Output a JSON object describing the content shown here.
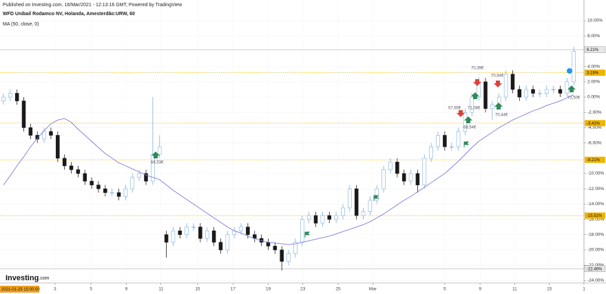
{
  "header": {
    "published": "Published on Investing.com, 16/Mar/2021 - 12:13:16 GMT, Powered by TradingView",
    "instrument": "WFD Unibail Rodamco NV, Holanda, Amesterdão:URW, 60",
    "indicator": "MA (50, close, 0)"
  },
  "logo": {
    "name": "Investing",
    "suffix": ".com"
  },
  "annotations": [
    "70,39€",
    "57,65€",
    "71,08€",
    "68,54€",
    "70,64€",
    "70,44€",
    "72,50€",
    "66,53€"
  ],
  "chart_data": {
    "type": "candlestick",
    "start_label": "2021-01-25 15:00:00",
    "up_color": "#7aaee0",
    "down_color": "#1a1a1a",
    "ma_color": "#7b7be0",
    "grid": true,
    "xlim": [
      -0.5,
      85.5
    ],
    "xticks": [
      {
        "value": 7.6,
        "label": "3"
      },
      {
        "value": 12.9,
        "label": "5"
      },
      {
        "value": 18.1,
        "label": "9"
      },
      {
        "value": 23.2,
        "label": "11"
      },
      {
        "value": 28.6,
        "label": "15"
      },
      {
        "value": 33.8,
        "label": "17"
      },
      {
        "value": 39,
        "label": "19"
      },
      {
        "value": 44.1,
        "label": "23"
      },
      {
        "value": 49.3,
        "label": "25"
      },
      {
        "value": 54.4,
        "label": "Mar"
      },
      {
        "value": 65,
        "label": "5"
      },
      {
        "value": 70.2,
        "label": "9"
      },
      {
        "value": 75.3,
        "label": "11"
      },
      {
        "value": 80.4,
        "label": "15"
      },
      {
        "value": 85.5,
        "label": "1"
      }
    ],
    "ylim": [
      -24.3,
      10.3
    ],
    "yticks": [
      {
        "value": 10,
        "label": "10.00%"
      },
      {
        "value": 8,
        "label": "8.00%"
      },
      {
        "value": 4,
        "label": "4.00%"
      },
      {
        "value": 2,
        "label": "2.00%"
      },
      {
        "value": 0,
        "label": "0.00%"
      },
      {
        "value": -2,
        "label": "-2.00%"
      },
      {
        "value": -4,
        "label": "-4.00%"
      },
      {
        "value": -6,
        "label": "-6.00%"
      },
      {
        "value": -10,
        "label": "-10.00%"
      },
      {
        "value": -12,
        "label": "-12.00%"
      },
      {
        "value": -14,
        "label": "-14.00%"
      },
      {
        "value": -16,
        "label": "-16.00%"
      },
      {
        "value": -18,
        "label": "-18.00%"
      },
      {
        "value": -20,
        "label": "-20.00%"
      },
      {
        "value": -22,
        "label": "-22.00%"
      },
      {
        "value": -24,
        "label": "-24.00%"
      }
    ],
    "price_lines": [
      {
        "value": 6.21,
        "label": "6.21%",
        "color": "#bbbbbb",
        "style": "solid"
      },
      {
        "value": 3.19,
        "label": "3.19%",
        "color": "#f0b400",
        "style": "dotted"
      },
      {
        "value": -3.41,
        "label": "-3.41%",
        "color": "#f0b400",
        "style": "dotted"
      },
      {
        "value": -8.21,
        "label": "-8.21%",
        "color": "#f0b400",
        "style": "dotted"
      },
      {
        "value": -15.51,
        "label": "-15.51%",
        "color": "#f0b400",
        "style": "dotted"
      },
      {
        "value": -22.46,
        "label": "-22.46%",
        "color": "#bbbbbb",
        "style": "solid"
      }
    ],
    "open": [
      -0.5,
      0,
      0.5,
      -0.5,
      -4,
      -5,
      -5.5,
      -4.5,
      -5,
      -8,
      -9,
      -9.5,
      -10,
      -11,
      -11.5,
      -12,
      -12.5,
      -12.5,
      -13,
      -12,
      -10.5,
      -10,
      -11,
      -7.5,
      -18,
      -19,
      -17.5,
      -18,
      -17,
      -17,
      -18.5,
      -17.5,
      -19,
      -20,
      -18,
      -17.5,
      -17,
      -18,
      -18.5,
      -19,
      -19.5,
      -20,
      -21.5,
      -20.5,
      -19,
      -16,
      -15.5,
      -16.5,
      -15.5,
      -16,
      -15.5,
      -14.5,
      -12,
      -15.5,
      -15,
      -13.5,
      -12,
      -9.5,
      -8.5,
      -10,
      -11,
      -10,
      -11.5,
      -8,
      -6.5,
      -5,
      -6.5,
      -6.5,
      -4.5,
      -2,
      0,
      2,
      -1.5,
      -1,
      0,
      3,
      1,
      0,
      1,
      0.5,
      0.5,
      1,
      1,
      0.5,
      2
    ],
    "high": [
      0.5,
      1,
      1,
      0,
      -3.5,
      -4.5,
      -4,
      -4,
      -4.5,
      -7.5,
      -8.5,
      -9,
      -9.5,
      -10.5,
      -11,
      -11.5,
      -12,
      -12,
      -11.5,
      -10,
      -9.5,
      -9.5,
      0,
      -5,
      -17.5,
      -17,
      -17,
      -16.5,
      -16.5,
      -16.5,
      -17,
      -17,
      -18.5,
      -17.5,
      -17,
      -16.5,
      -16.5,
      -17.5,
      -18,
      -18.5,
      -19,
      -19.5,
      -20,
      -18.5,
      -15.5,
      -15,
      -15,
      -15,
      -15,
      -15,
      -14,
      -11.5,
      -11.5,
      -14.5,
      -13,
      -11.5,
      -9,
      -8,
      -8,
      -9.5,
      -9.5,
      -9.5,
      -7.5,
      -6,
      -4.5,
      -4.5,
      -6,
      -4,
      -1.5,
      0.5,
      2.6,
      2.5,
      -0.5,
      0.5,
      3.5,
      3.5,
      1.5,
      1.5,
      1.5,
      1,
      1.5,
      1.5,
      1.5,
      2.5,
      6.6
    ],
    "low": [
      -1,
      -0.5,
      -1,
      -4.5,
      -5.5,
      -6,
      -6,
      -5.5,
      -8.5,
      -9.5,
      -10,
      -10.5,
      -11.5,
      -12,
      -12.5,
      -13,
      -13,
      -13.5,
      -13.5,
      -12.5,
      -11,
      -11.5,
      -11.5,
      -8,
      -21,
      -19.5,
      -18.5,
      -18.5,
      -17.5,
      -19,
      -19,
      -19.5,
      -20.5,
      -20.5,
      -18.5,
      -18,
      -18.5,
      -19,
      -19.5,
      -20,
      -20.5,
      -22.7,
      -22,
      -21,
      -19.5,
      -16.5,
      -17,
      -17,
      -16.5,
      -16.5,
      -16,
      -15,
      -16,
      -16,
      -15.5,
      -14,
      -12.5,
      -10,
      -10.5,
      -11.5,
      -11.5,
      -12.5,
      -12,
      -8.5,
      -7,
      -7,
      -7,
      -7,
      -5,
      -2.5,
      -0.5,
      -2,
      -3,
      -1.5,
      -0.5,
      0.5,
      -0.5,
      -0.5,
      0,
      0,
      0,
      0.5,
      0,
      0,
      1.5
    ],
    "close": [
      0,
      0.5,
      -0.5,
      -4,
      -5,
      -5.5,
      -4.5,
      -5,
      -8,
      -9,
      -9.5,
      -10,
      -11,
      -11.5,
      -12,
      -12.5,
      -12.5,
      -13,
      -12,
      -10.5,
      -10,
      -11,
      -7.5,
      -6.5,
      -19,
      -17.5,
      -18,
      -17,
      -17,
      -18.5,
      -17.5,
      -19,
      -20,
      -18,
      -17.5,
      -17,
      -18,
      -18.5,
      -19,
      -19.5,
      -20,
      -21.5,
      -20.5,
      -19,
      -16,
      -15.5,
      -16.5,
      -15.5,
      -16,
      -15.5,
      -14.5,
      -12,
      -15.5,
      -15,
      -13.5,
      -12,
      -9.5,
      -8.5,
      -10,
      -11,
      -10,
      -11.5,
      -8,
      -6.5,
      -5,
      -6.5,
      -6.5,
      -4.5,
      -2,
      0,
      2,
      -1.5,
      -1,
      0,
      3,
      1,
      0,
      1,
      0.5,
      0.5,
      1,
      1,
      0.5,
      2,
      6
    ],
    "ma": [
      -11.5,
      -10.3,
      -9,
      -7.8,
      -6.5,
      -5.4,
      -4.4,
      -3.5,
      -3,
      -2.8,
      -3.3,
      -4.2,
      -5,
      -5.8,
      -6.6,
      -7.4,
      -8,
      -8.6,
      -9,
      -9.4,
      -9.8,
      -10.2,
      -10.5,
      -10.8,
      -11.5,
      -12.2,
      -12.8,
      -13.4,
      -14,
      -14.6,
      -15.2,
      -15.8,
      -16.4,
      -17,
      -17.5,
      -17.8,
      -18.2,
      -18.5,
      -18.8,
      -19,
      -19.1,
      -19.2,
      -19.3,
      -19.2,
      -19,
      -18.8,
      -18.6,
      -18.4,
      -18.2,
      -17.9,
      -17.6,
      -17.3,
      -17,
      -16.7,
      -16.3,
      -15.8,
      -15.3,
      -14.7,
      -14.1,
      -13.5,
      -13,
      -12.4,
      -11.8,
      -11.2,
      -10.6,
      -10,
      -9.2,
      -8.4,
      -7.5,
      -6.6,
      -5.8,
      -5.2,
      -4.6,
      -4,
      -3.5,
      -3,
      -2.6,
      -2.2,
      -1.8,
      -1.5,
      -1.1,
      -0.8,
      -0.5,
      -0.1,
      0.3
    ]
  }
}
